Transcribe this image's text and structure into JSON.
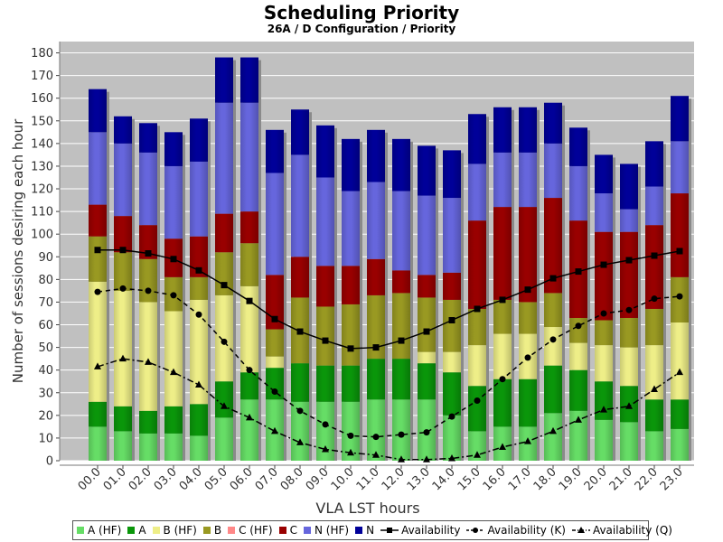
{
  "chart_data": {
    "type": "bar",
    "stacked": true,
    "title": "Scheduling Priority",
    "subtitle": "26A / D Configuration /  Priority",
    "xlabel": "VLA LST hours",
    "ylabel": "Number of sessions desiring each hour",
    "ylim": [
      0,
      185
    ],
    "yticks": [
      0,
      10,
      20,
      30,
      40,
      50,
      60,
      70,
      80,
      90,
      100,
      110,
      120,
      130,
      140,
      150,
      160,
      170,
      180
    ],
    "grid": true,
    "categories": [
      "00.0",
      "01.0",
      "02.0",
      "03.0",
      "04.0",
      "05.0",
      "06.0",
      "07.0",
      "08.0",
      "09.0",
      "10.0",
      "11.0",
      "12.0",
      "13.0",
      "14.0",
      "15.0",
      "16.0",
      "17.0",
      "18.0",
      "19.0",
      "20.0",
      "21.0",
      "22.0",
      "23.0"
    ],
    "series": [
      {
        "name": "A (HF)",
        "color": "#66dd66",
        "values": [
          15,
          13,
          12,
          12,
          11,
          19,
          27,
          27,
          26,
          26,
          26,
          27,
          27,
          27,
          20,
          13,
          15,
          15,
          21,
          22,
          18,
          17,
          13,
          14
        ]
      },
      {
        "name": "A",
        "color": "#0a960a",
        "values": [
          11,
          11,
          10,
          12,
          14,
          16,
          12,
          14,
          17,
          16,
          16,
          18,
          18,
          16,
          19,
          20,
          21,
          21,
          21,
          18,
          17,
          16,
          14,
          13
        ]
      },
      {
        "name": "B (HF)",
        "color": "#eeee88",
        "values": [
          53,
          51,
          48,
          42,
          46,
          38,
          38,
          5,
          0,
          0,
          0,
          0,
          0,
          5,
          9,
          18,
          20,
          20,
          17,
          12,
          16,
          17,
          24,
          34
        ]
      },
      {
        "name": "B",
        "color": "#999922",
        "values": [
          20,
          17,
          19,
          15,
          10,
          19,
          19,
          12,
          29,
          26,
          27,
          28,
          29,
          24,
          23,
          16,
          15,
          14,
          15,
          11,
          11,
          13,
          16,
          20
        ]
      },
      {
        "name": "C (HF)",
        "color": "#ff8888",
        "values": [
          0,
          0,
          0,
          0,
          0,
          0,
          0,
          0,
          0,
          0,
          0,
          0,
          0,
          0,
          0,
          0,
          0,
          0,
          0,
          0,
          0,
          0,
          0,
          0
        ]
      },
      {
        "name": "C",
        "color": "#990000",
        "values": [
          14,
          16,
          15,
          17,
          18,
          17,
          14,
          24,
          18,
          18,
          17,
          16,
          10,
          10,
          12,
          39,
          41,
          42,
          42,
          43,
          39,
          38,
          37,
          37
        ]
      },
      {
        "name": "N (HF)",
        "color": "#6666dd",
        "values": [
          32,
          32,
          32,
          32,
          33,
          49,
          48,
          45,
          45,
          39,
          33,
          34,
          35,
          35,
          33,
          25,
          24,
          24,
          24,
          24,
          17,
          10,
          17,
          23
        ]
      },
      {
        "name": "N",
        "color": "#000099",
        "values": [
          19,
          12,
          13,
          15,
          19,
          20,
          20,
          19,
          20,
          23,
          23,
          23,
          23,
          22,
          21,
          22,
          20,
          20,
          18,
          17,
          17,
          20,
          20,
          20
        ]
      }
    ],
    "lines": [
      {
        "name": "Availability",
        "marker": "square",
        "dash": "solid",
        "values": [
          93,
          93,
          91.5,
          89,
          84,
          77.5,
          70.5,
          62.5,
          57,
          53,
          49.5,
          50,
          53,
          57,
          62,
          67,
          71,
          75.5,
          80.5,
          83.5,
          86.5,
          88.5,
          90.5,
          92.5
        ]
      },
      {
        "name": "Availability (K)",
        "marker": "circle",
        "dash": "dashed",
        "values": [
          74.5,
          76,
          75,
          73,
          64.5,
          52.5,
          40,
          30.5,
          22,
          16,
          11,
          10.5,
          11.5,
          12.5,
          19.5,
          26.5,
          36,
          45.5,
          53.5,
          59.5,
          65,
          66.5,
          71.5,
          72.5
        ]
      },
      {
        "name": "Availability (Q)",
        "marker": "triangle",
        "dash": "dashdot",
        "values": [
          41.5,
          45,
          43.5,
          39,
          33.5,
          24,
          19,
          13,
          8,
          5,
          3.5,
          2.5,
          0.5,
          0.5,
          1,
          2.5,
          6,
          8.5,
          13,
          18,
          22.5,
          24,
          31.5,
          39
        ]
      }
    ],
    "legend_position": "bottom"
  }
}
